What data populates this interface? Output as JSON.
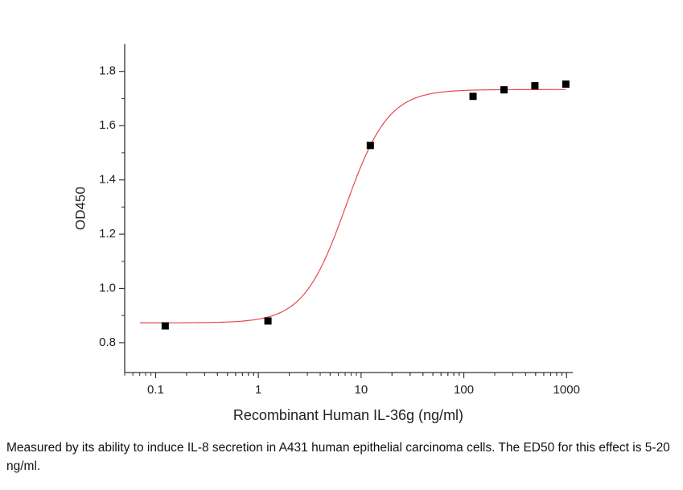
{
  "chart_data": {
    "type": "scatter",
    "x_label": "Recombinant Human IL-36g (ng/ml)",
    "y_label": "OD450",
    "x": [
      0.124,
      1.24,
      12.3,
      123,
      246,
      492,
      984
    ],
    "values": [
      0.862,
      0.88,
      1.527,
      1.708,
      1.732,
      1.747,
      1.753
    ],
    "color": "#000000",
    "fit_curve": {
      "color": "#e8474b",
      "bottom": 0.873,
      "top": 1.733,
      "ec50": 7.1,
      "hill": 2.1
    },
    "x_log": true,
    "xlim": [
      0.05,
      1150
    ],
    "xticks": [
      0.1,
      1,
      10,
      100,
      1000
    ],
    "ylim": [
      0.69,
      1.9
    ],
    "yticks": [
      0.8,
      {
        "value": 1,
        "label": "1.0"
      },
      1.2,
      1.4,
      1.6,
      1.8
    ]
  },
  "caption": "Measured by its ability to induce IL-8 secretion in A431 human epithelial carcinoma cells. The ED50 for this effect is 5-20 ng/ml."
}
